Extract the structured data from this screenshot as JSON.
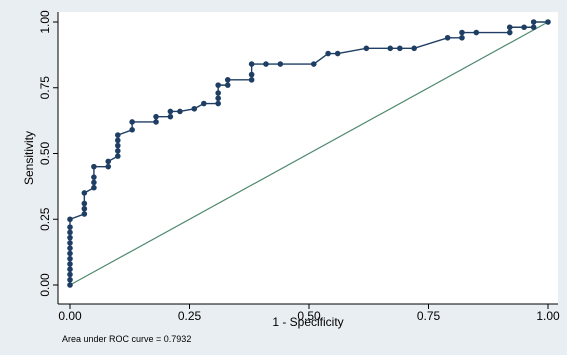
{
  "chart_data": {
    "type": "line",
    "title": "",
    "xlabel": "1 - Specificity",
    "ylabel": "Sensitivity",
    "xlim": [
      0,
      1
    ],
    "ylim": [
      0,
      1
    ],
    "xticks": [
      "0.00",
      "0.25",
      "0.50",
      "0.75",
      "1.00"
    ],
    "yticks": [
      "0.00",
      "0.25",
      "0.50",
      "0.75",
      "1.00"
    ],
    "grid": false,
    "legend": "none",
    "annotation": "Area under ROC curve = 0.7932",
    "colors": {
      "roc_line": "#1f3e63",
      "roc_marker": "#1f3e63",
      "reference_line": "#4f8a6e",
      "plot_background": "#ffffff",
      "outer_background": "#e9eef2"
    },
    "series": [
      {
        "kind": "roc",
        "x": [
          0.0,
          0.0,
          0.0,
          0.0,
          0.0,
          0.0,
          0.0,
          0.0,
          0.0,
          0.0,
          0.0,
          0.0,
          0.0,
          0.03,
          0.03,
          0.03,
          0.03,
          0.05,
          0.05,
          0.05,
          0.05,
          0.08,
          0.08,
          0.1,
          0.1,
          0.1,
          0.1,
          0.1,
          0.13,
          0.13,
          0.18,
          0.18,
          0.21,
          0.21,
          0.23,
          0.26,
          0.28,
          0.31,
          0.31,
          0.31,
          0.31,
          0.33,
          0.33,
          0.38,
          0.38,
          0.38,
          0.41,
          0.44,
          0.51,
          0.54,
          0.56,
          0.62,
          0.67,
          0.69,
          0.72,
          0.79,
          0.82,
          0.82,
          0.85,
          0.92,
          0.92,
          0.95,
          0.97,
          0.97,
          1.0
        ],
        "y": [
          0.0,
          0.02,
          0.04,
          0.06,
          0.08,
          0.1,
          0.12,
          0.14,
          0.16,
          0.18,
          0.2,
          0.22,
          0.25,
          0.27,
          0.29,
          0.31,
          0.35,
          0.37,
          0.39,
          0.41,
          0.45,
          0.45,
          0.47,
          0.49,
          0.51,
          0.53,
          0.55,
          0.57,
          0.59,
          0.62,
          0.62,
          0.64,
          0.64,
          0.66,
          0.66,
          0.67,
          0.69,
          0.69,
          0.71,
          0.73,
          0.76,
          0.76,
          0.78,
          0.78,
          0.8,
          0.84,
          0.84,
          0.84,
          0.84,
          0.88,
          0.88,
          0.9,
          0.9,
          0.9,
          0.9,
          0.94,
          0.94,
          0.96,
          0.96,
          0.96,
          0.98,
          0.98,
          0.98,
          1.0,
          1.0
        ]
      },
      {
        "kind": "reference",
        "x": [
          0,
          1
        ],
        "y": [
          0,
          1
        ]
      }
    ]
  }
}
